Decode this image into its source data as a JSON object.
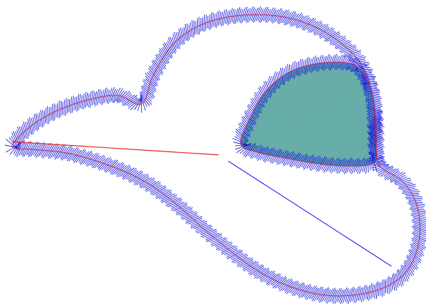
{
  "colors": {
    "background": "#ffffff",
    "satin_stitch": "#1f1fe6",
    "satin_stitch_dark": "#0a0ab0",
    "centerline": "#c8205a",
    "fill_base": "#2f8c86",
    "fill_stitch": "#a9d4d0",
    "jump_stitch_red": "#e01e1e",
    "jump_stitch_blue": "#2a2af0"
  },
  "icons": {
    "outline": "satin-outline-icon",
    "fill": "fill-region-icon"
  }
}
